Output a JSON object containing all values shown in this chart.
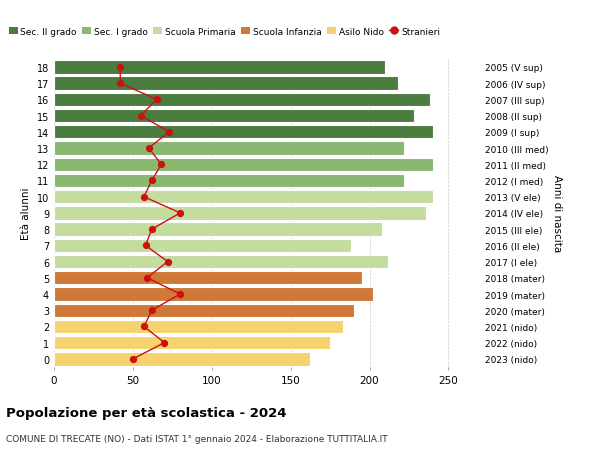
{
  "ages": [
    0,
    1,
    2,
    3,
    4,
    5,
    6,
    7,
    8,
    9,
    10,
    11,
    12,
    13,
    14,
    15,
    16,
    17,
    18
  ],
  "years": [
    "2023 (nido)",
    "2022 (nido)",
    "2021 (nido)",
    "2020 (mater)",
    "2019 (mater)",
    "2018 (mater)",
    "2017 (I ele)",
    "2016 (II ele)",
    "2015 (III ele)",
    "2014 (IV ele)",
    "2013 (V ele)",
    "2012 (I med)",
    "2011 (II med)",
    "2010 (III med)",
    "2009 (I sup)",
    "2008 (II sup)",
    "2007 (III sup)",
    "2006 (IV sup)",
    "2005 (V sup)"
  ],
  "bar_values": [
    162,
    175,
    183,
    190,
    202,
    195,
    212,
    188,
    208,
    236,
    240,
    222,
    240,
    222,
    240,
    228,
    238,
    218,
    210
  ],
  "stranieri": [
    50,
    70,
    57,
    62,
    80,
    59,
    72,
    58,
    62,
    80,
    57,
    62,
    68,
    60,
    73,
    55,
    65,
    42,
    42
  ],
  "bar_colors": {
    "asilo_nido": "#f5d26b",
    "scuola_infanzia": "#d07838",
    "scuola_primaria": "#c5dca0",
    "sec_i_grado": "#8ab870",
    "sec_ii_grado": "#4a7c3f"
  },
  "age_to_school": {
    "0": "asilo_nido",
    "1": "asilo_nido",
    "2": "asilo_nido",
    "3": "scuola_infanzia",
    "4": "scuola_infanzia",
    "5": "scuola_infanzia",
    "6": "scuola_primaria",
    "7": "scuola_primaria",
    "8": "scuola_primaria",
    "9": "scuola_primaria",
    "10": "scuola_primaria",
    "11": "sec_i_grado",
    "12": "sec_i_grado",
    "13": "sec_i_grado",
    "14": "sec_ii_grado",
    "15": "sec_ii_grado",
    "16": "sec_ii_grado",
    "17": "sec_ii_grado",
    "18": "sec_ii_grado"
  },
  "xlim": [
    0,
    270
  ],
  "xticks": [
    0,
    50,
    100,
    150,
    200,
    250
  ],
  "ylabel": "Età alunni",
  "right_ylabel": "Anni di nascita",
  "title": "Popolazione per età scolastica - 2024",
  "subtitle": "COMUNE DI TRECATE (NO) - Dati ISTAT 1° gennaio 2024 - Elaborazione TUTTITALIA.IT",
  "legend_items": [
    {
      "label": "Sec. II grado",
      "color": "#4a7c3f"
    },
    {
      "label": "Sec. I grado",
      "color": "#8ab870"
    },
    {
      "label": "Scuola Primaria",
      "color": "#c5dca0"
    },
    {
      "label": "Scuola Infanzia",
      "color": "#d07838"
    },
    {
      "label": "Asilo Nido",
      "color": "#f5d26b"
    },
    {
      "label": "Stranieri",
      "color": "#cc1111"
    }
  ],
  "stranieri_color": "#cc1111",
  "bg_color": "#ffffff",
  "grid_color": "#cccccc"
}
